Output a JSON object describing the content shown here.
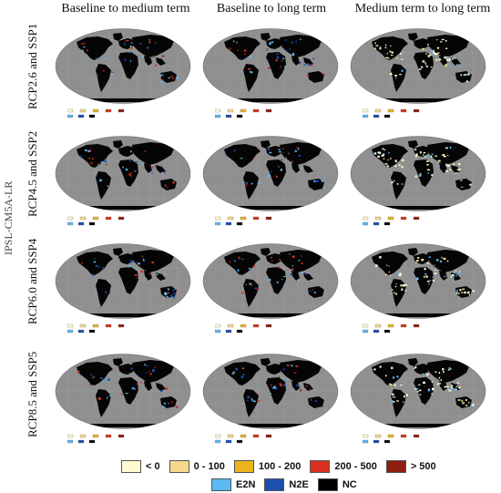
{
  "columns": [
    "Baseline to medium term",
    "Baseline to long term",
    "Medium term to long term"
  ],
  "rows": [
    "RCP2.6 and SSP1",
    "RCP4.5 and SSP2",
    "RCP6.0 and SSP4",
    "RCP8.5 and SSP5"
  ],
  "model": "IPSL-CM5A-LR",
  "legend": {
    "row1": [
      {
        "label": "< 0",
        "color": "#fefbd0"
      },
      {
        "label": "0 - 100",
        "color": "#f5d98b"
      },
      {
        "label": "100 - 200",
        "color": "#e9b41e"
      },
      {
        "label": "200 - 500",
        "color": "#d9331f"
      },
      {
        "label": "> 500",
        "color": "#8f1d10"
      }
    ],
    "row2": [
      {
        "label": "E2N",
        "color": "#5cb8f2"
      },
      {
        "label": "N2E",
        "color": "#1c4fae"
      },
      {
        "label": "NC",
        "color": "#000000"
      }
    ]
  },
  "map_colors": {
    "ocean": "#8f8f8f",
    "land": "#050505"
  }
}
